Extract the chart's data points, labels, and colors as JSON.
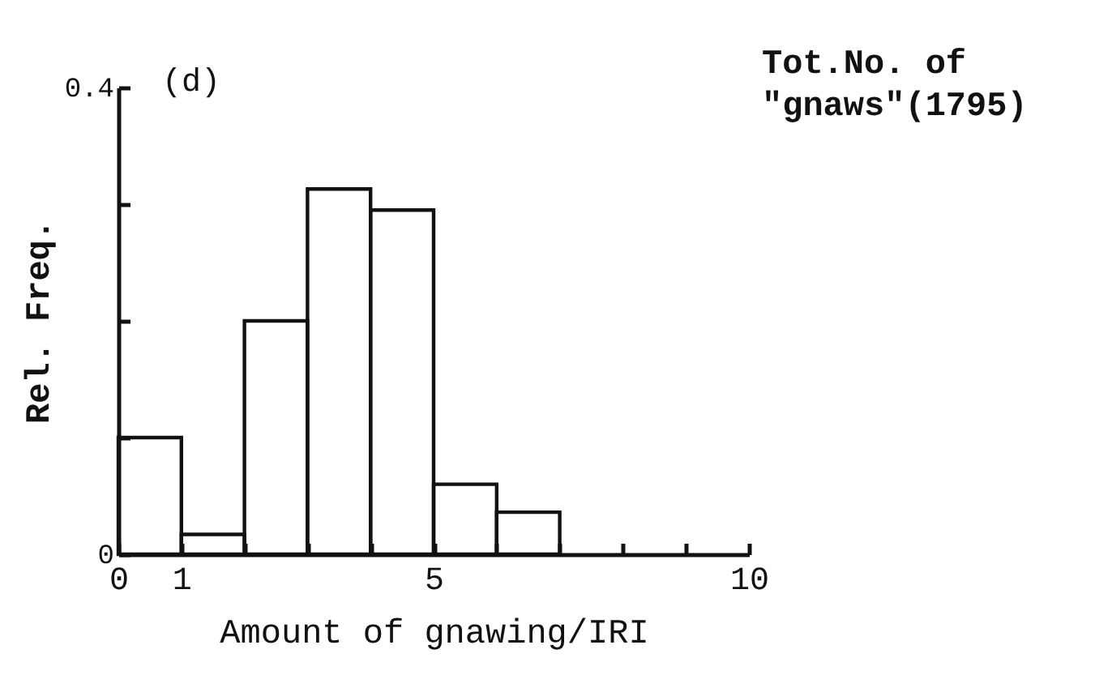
{
  "chart_data": {
    "type": "histogram",
    "bins": [
      0,
      1,
      2,
      3,
      4,
      5,
      6,
      7
    ],
    "values": [
      0.1,
      0.017,
      0.2,
      0.313,
      0.295,
      0.06,
      0.036
    ],
    "color": "#111111",
    "xlabel": "Amount of gnawing/IRI",
    "ylabel": "Rel. Freq.",
    "xlim": [
      0,
      10
    ],
    "ylim": [
      0,
      0.4
    ],
    "xticks": [
      0,
      1,
      {
        "value": 2,
        "label": null
      },
      {
        "value": 3,
        "label": null
      },
      {
        "value": 4,
        "label": null
      },
      5,
      {
        "value": 6,
        "label": null
      },
      {
        "value": 7,
        "label": null
      },
      {
        "value": 8,
        "label": null
      },
      {
        "value": 9,
        "label": null
      },
      10
    ],
    "yticks": [
      0,
      {
        "value": 0.1,
        "label": null
      },
      {
        "value": 0.2,
        "label": null
      },
      {
        "value": 0.3,
        "label": null
      },
      0.4
    ],
    "annotations": [
      "(d)",
      "Tot.No. of \"gnaws\"(1795)"
    ]
  }
}
